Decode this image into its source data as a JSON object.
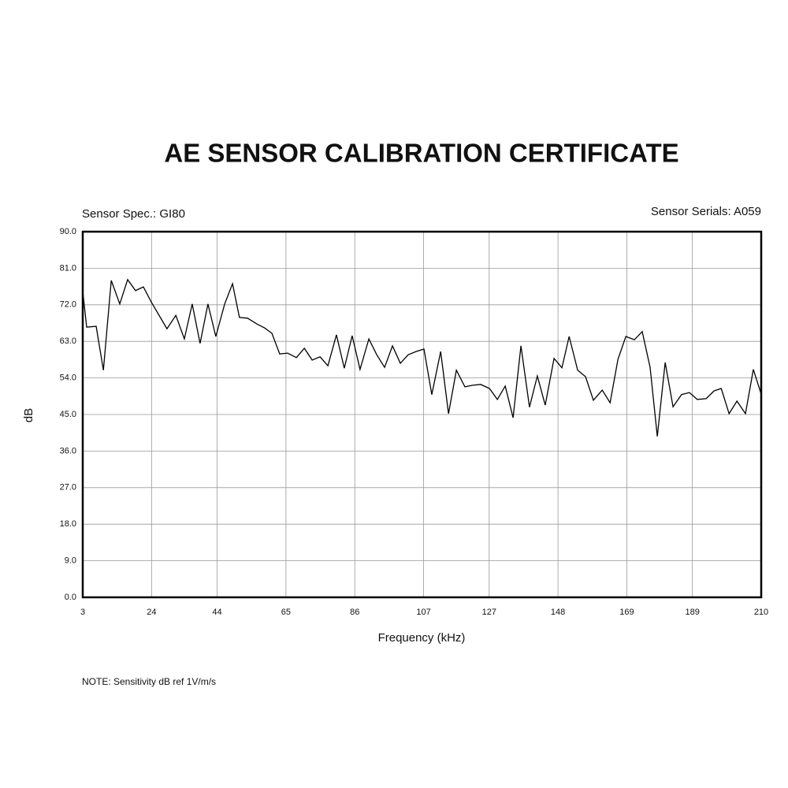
{
  "chart_data": {
    "type": "line",
    "title": "AE SENSOR CALIBRATION CERTIFICATE",
    "sensor_spec": "Sensor Spec.: GI80",
    "sensor_serials": "Sensor Serials: A059",
    "xlabel": "Frequency (kHz)",
    "ylabel": "dB",
    "note": "NOTE:  Sensitivity dB ref 1V/m/s",
    "color": "#000000",
    "grid": true,
    "xlim": [
      3,
      210
    ],
    "xticks": [
      3,
      24,
      44,
      65,
      86,
      107,
      127,
      148,
      169,
      189,
      210
    ],
    "ylim": [
      0,
      90
    ],
    "yticks": [
      {
        "value": 0,
        "label": "0.0"
      },
      {
        "value": 9,
        "label": "9.0"
      },
      {
        "value": 18,
        "label": "18.0"
      },
      {
        "value": 27,
        "label": "27.0"
      },
      {
        "value": 36,
        "label": "36.0"
      },
      {
        "value": 45,
        "label": "45.0"
      },
      {
        "value": 54,
        "label": "54.0"
      },
      {
        "value": 63,
        "label": "63.0"
      },
      {
        "value": 72,
        "label": "72.0"
      },
      {
        "value": 81,
        "label": "81.0"
      },
      {
        "value": 90,
        "label": "90.0"
      }
    ],
    "x": [
      3,
      4.2,
      7.1,
      9.3,
      11.7,
      14.3,
      16.7,
      19.1,
      21.5,
      23.9,
      28.7,
      31.4,
      34.0,
      36.4,
      38.8,
      41.2,
      43.6,
      46.3,
      48.7,
      50.8,
      53.3,
      56.1,
      58.5,
      60.7,
      63.1,
      65.5,
      68.2,
      70.6,
      73.0,
      75.4,
      77.8,
      80.4,
      82.8,
      85.2,
      87.6,
      90.3,
      92.7,
      95.1,
      97.5,
      99.9,
      102.3,
      104.7,
      107.1,
      109.5,
      112.2,
      114.6,
      117.0,
      119.6,
      122.0,
      124.4,
      127.1,
      129.5,
      131.9,
      134.3,
      136.7,
      139.3,
      141.7,
      144.1,
      146.8,
      149.2,
      151.4,
      154.0,
      156.4,
      158.8,
      161.5,
      163.9,
      166.3,
      168.7,
      171.3,
      173.7,
      176.1,
      178.3,
      180.7,
      183.1,
      185.7,
      188.1,
      190.5,
      193.2,
      195.6,
      197.8,
      200.2,
      202.6,
      205.2,
      207.6,
      210
    ],
    "values": [
      75.3,
      66.5,
      66.7,
      55.9,
      78.0,
      72.2,
      78.2,
      75.5,
      76.4,
      72.7,
      66.1,
      69.4,
      63.6,
      72.2,
      62.5,
      72.2,
      64.2,
      72.2,
      77.2,
      68.9,
      68.7,
      67.3,
      66.3,
      65.0,
      59.9,
      60.1,
      59.0,
      61.3,
      58.4,
      59.2,
      57.0,
      64.6,
      56.4,
      64.4,
      56.1,
      63.6,
      59.7,
      56.6,
      61.9,
      57.6,
      59.7,
      60.5,
      61.1,
      49.9,
      60.5,
      45.2,
      55.9,
      51.8,
      52.2,
      52.4,
      51.4,
      48.7,
      52.0,
      44.2,
      61.9,
      46.8,
      54.5,
      47.3,
      58.8,
      56.5,
      64.2,
      55.9,
      54.3,
      48.5,
      51.0,
      47.9,
      58.6,
      64.2,
      63.4,
      65.4,
      56.6,
      39.6,
      57.8,
      46.9,
      49.9,
      50.4,
      48.7,
      48.9,
      50.8,
      51.4,
      45.2,
      48.3,
      45.2,
      56.1,
      50.0
    ]
  }
}
